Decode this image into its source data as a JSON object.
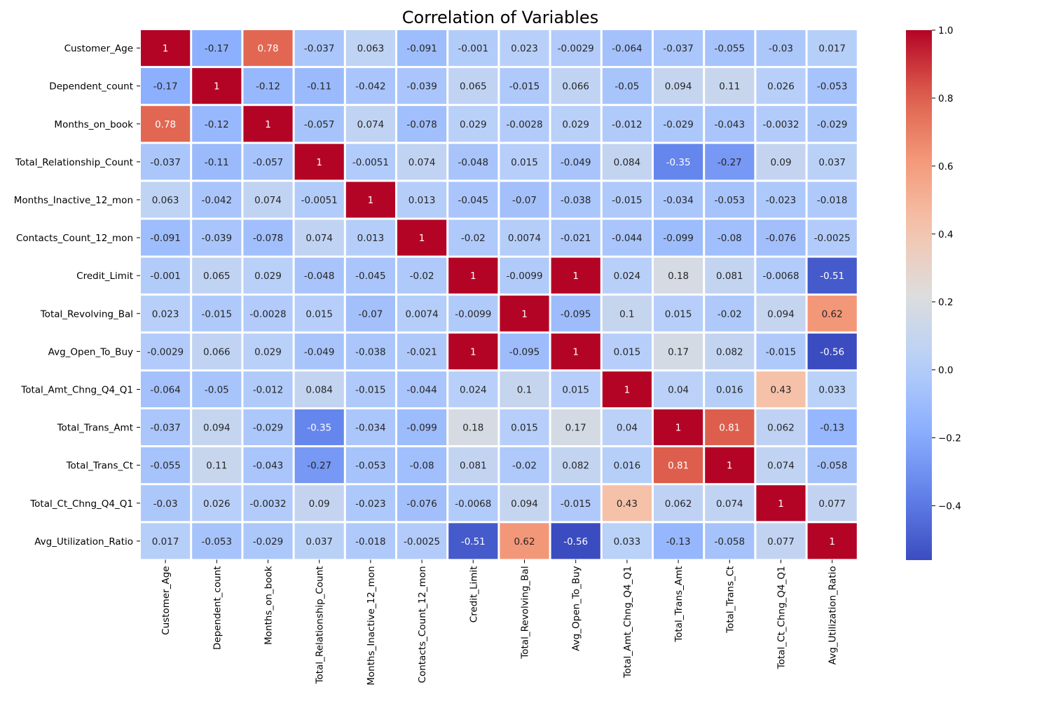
{
  "chart_data": {
    "type": "heatmap",
    "title": "Correlation of Variables",
    "xlabel": "",
    "ylabel": "",
    "variables": [
      "Customer_Age",
      "Dependent_count",
      "Months_on_book",
      "Total_Relationship_Count",
      "Months_Inactive_12_mon",
      "Contacts_Count_12_mon",
      "Credit_Limit",
      "Total_Revolving_Bal",
      "Avg_Open_To_Buy",
      "Total_Amt_Chng_Q4_Q1",
      "Total_Trans_Amt",
      "Total_Trans_Ct",
      "Total_Ct_Chng_Q4_Q1",
      "Avg_Utilization_Ratio"
    ],
    "matrix": [
      [
        "1",
        "-0.17",
        "0.78",
        "-0.037",
        "0.063",
        "-0.091",
        "-0.001",
        "0.023",
        "-0.0029",
        "-0.064",
        "-0.037",
        "-0.055",
        "-0.03",
        "0.017"
      ],
      [
        "-0.17",
        "1",
        "-0.12",
        "-0.11",
        "-0.042",
        "-0.039",
        "0.065",
        "-0.015",
        "0.066",
        "-0.05",
        "0.094",
        "0.11",
        "0.026",
        "-0.053"
      ],
      [
        "0.78",
        "-0.12",
        "1",
        "-0.057",
        "0.074",
        "-0.078",
        "0.029",
        "-0.0028",
        "0.029",
        "-0.012",
        "-0.029",
        "-0.043",
        "-0.0032",
        "-0.029"
      ],
      [
        "-0.037",
        "-0.11",
        "-0.057",
        "1",
        "-0.0051",
        "0.074",
        "-0.048",
        "0.015",
        "-0.049",
        "0.084",
        "-0.35",
        "-0.27",
        "0.09",
        "0.037"
      ],
      [
        "0.063",
        "-0.042",
        "0.074",
        "-0.0051",
        "1",
        "0.013",
        "-0.045",
        "-0.07",
        "-0.038",
        "-0.015",
        "-0.034",
        "-0.053",
        "-0.023",
        "-0.018"
      ],
      [
        "-0.091",
        "-0.039",
        "-0.078",
        "0.074",
        "0.013",
        "1",
        "-0.02",
        "0.0074",
        "-0.021",
        "-0.044",
        "-0.099",
        "-0.08",
        "-0.076",
        "-0.0025"
      ],
      [
        "-0.001",
        "0.065",
        "0.029",
        "-0.048",
        "-0.045",
        "-0.02",
        "1",
        "-0.0099",
        "1",
        "0.024",
        "0.18",
        "0.081",
        "-0.0068",
        "-0.51"
      ],
      [
        "0.023",
        "-0.015",
        "-0.0028",
        "0.015",
        "-0.07",
        "0.0074",
        "-0.0099",
        "1",
        "-0.095",
        "0.1",
        "0.015",
        "-0.02",
        "0.094",
        "0.62"
      ],
      [
        "-0.0029",
        "0.066",
        "0.029",
        "-0.049",
        "-0.038",
        "-0.021",
        "1",
        "-0.095",
        "1",
        "0.015",
        "0.17",
        "0.082",
        "-0.015",
        "-0.56"
      ],
      [
        "-0.064",
        "-0.05",
        "-0.012",
        "0.084",
        "-0.015",
        "-0.044",
        "0.024",
        "0.1",
        "0.015",
        "1",
        "0.04",
        "0.016",
        "0.43",
        "0.033"
      ],
      [
        "-0.037",
        "0.094",
        "-0.029",
        "-0.35",
        "-0.034",
        "-0.099",
        "0.18",
        "0.015",
        "0.17",
        "0.04",
        "1",
        "0.81",
        "0.062",
        "-0.13"
      ],
      [
        "-0.055",
        "0.11",
        "-0.043",
        "-0.27",
        "-0.053",
        "-0.08",
        "0.081",
        "-0.02",
        "0.082",
        "0.016",
        "0.81",
        "1",
        "0.074",
        "-0.058"
      ],
      [
        "-0.03",
        "0.026",
        "-0.0032",
        "0.09",
        "-0.023",
        "-0.076",
        "-0.0068",
        "0.094",
        "-0.015",
        "0.43",
        "0.062",
        "0.074",
        "1",
        "0.077"
      ],
      [
        "0.017",
        "-0.053",
        "-0.029",
        "0.037",
        "-0.018",
        "-0.0025",
        "-0.51",
        "0.62",
        "-0.56",
        "0.033",
        "-0.13",
        "-0.058",
        "0.077",
        "1"
      ]
    ],
    "color_scale": {
      "name": "coolwarm",
      "vmin": -0.56,
      "vmax": 1.0,
      "ticks": [
        "1.0",
        "0.8",
        "0.6",
        "0.4",
        "0.2",
        "0.0",
        "−0.2",
        "−0.4"
      ]
    },
    "grid": false,
    "legend": "right"
  }
}
